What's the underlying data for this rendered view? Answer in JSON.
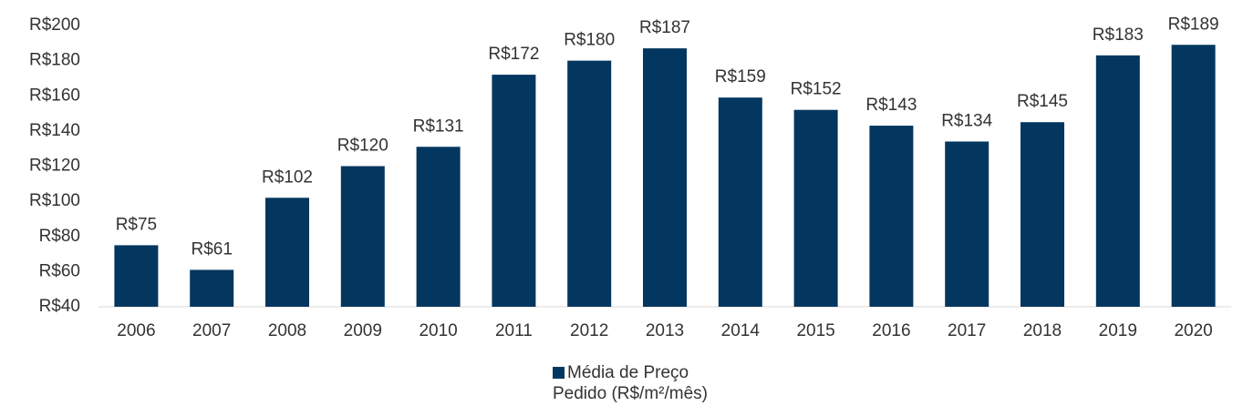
{
  "chart_data": {
    "type": "bar",
    "categories": [
      "2006",
      "2007",
      "2008",
      "2009",
      "2010",
      "2011",
      "2012",
      "2013",
      "2014",
      "2015",
      "2016",
      "2017",
      "2018",
      "2019",
      "2020"
    ],
    "series": [
      {
        "name": "Média de Preço Pedido (R$/m²/mês)",
        "color": "#04375f",
        "values": [
          75,
          61,
          102,
          120,
          131,
          172,
          180,
          187,
          159,
          152,
          143,
          134,
          145,
          183,
          189
        ],
        "value_labels": [
          "R$75",
          "R$61",
          "R$102",
          "R$120",
          "R$131",
          "R$172",
          "R$180",
          "R$187",
          "R$159",
          "R$152",
          "R$143",
          "R$134",
          "R$145",
          "R$183",
          "R$189"
        ]
      }
    ],
    "ylim": [
      40,
      200
    ],
    "yticks": [
      {
        "value": 40,
        "label": "R$40"
      },
      {
        "value": 60,
        "label": "R$60"
      },
      {
        "value": 80,
        "label": "R$80"
      },
      {
        "value": 100,
        "label": "R$100"
      },
      {
        "value": 120,
        "label": "R$120"
      },
      {
        "value": 140,
        "label": "R$140"
      },
      {
        "value": 160,
        "label": "R$160"
      },
      {
        "value": 180,
        "label": "R$180"
      },
      {
        "value": 200,
        "label": "R$200"
      }
    ],
    "grid": false,
    "legend": "bottom"
  }
}
